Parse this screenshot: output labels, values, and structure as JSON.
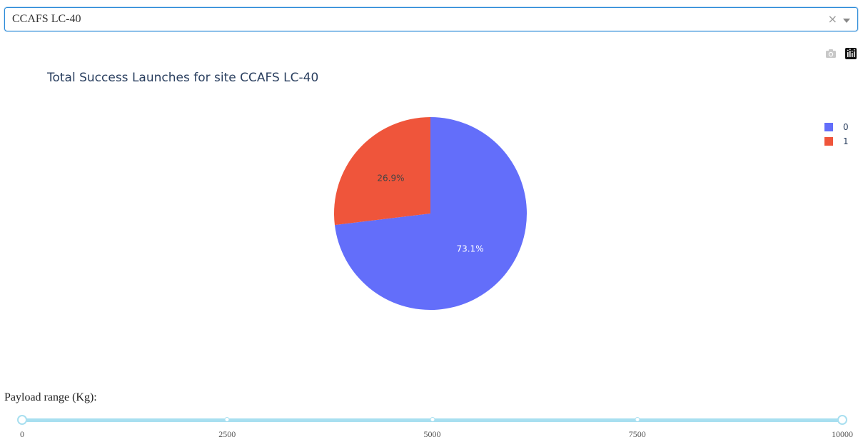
{
  "dropdown": {
    "selected": "CCAFS LC-40",
    "clear_glyph": "×"
  },
  "modebar": {
    "icons": [
      "camera-icon",
      "plotly-logo-icon"
    ]
  },
  "chart_data": {
    "type": "pie",
    "title": "Total Success Launches for site CCAFS LC-40",
    "labels": [
      "0",
      "1"
    ],
    "values": [
      73.1,
      26.9
    ],
    "text_labels": [
      "73.1%",
      "26.9%"
    ],
    "colors": [
      "#636efa",
      "#ef553b"
    ],
    "legend_position": "top-right"
  },
  "slider": {
    "label": "Payload range (Kg):",
    "min": 0,
    "max": 10000,
    "value": [
      0,
      10000
    ],
    "marks": [
      "0",
      "2500",
      "5000",
      "7500",
      "10000"
    ],
    "mark_values": [
      0,
      2500,
      5000,
      7500,
      10000
    ],
    "color": "#a8dff0"
  }
}
